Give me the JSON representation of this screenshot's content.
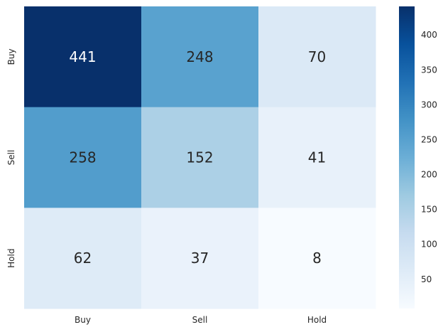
{
  "chart_data": {
    "type": "heatmap",
    "title": "",
    "xlabel": "",
    "ylabel": "",
    "x_categories": [
      "Buy",
      "Sell",
      "Hold"
    ],
    "y_categories": [
      "Buy",
      "Sell",
      "Hold"
    ],
    "values": [
      [
        441,
        248,
        70
      ],
      [
        258,
        152,
        41
      ],
      [
        62,
        37,
        8
      ]
    ],
    "colormap": "Blues",
    "color_range": [
      8,
      441
    ],
    "colorbar_ticks": [
      50,
      100,
      150,
      200,
      250,
      300,
      350,
      400
    ],
    "annotated": true,
    "grid": false
  }
}
